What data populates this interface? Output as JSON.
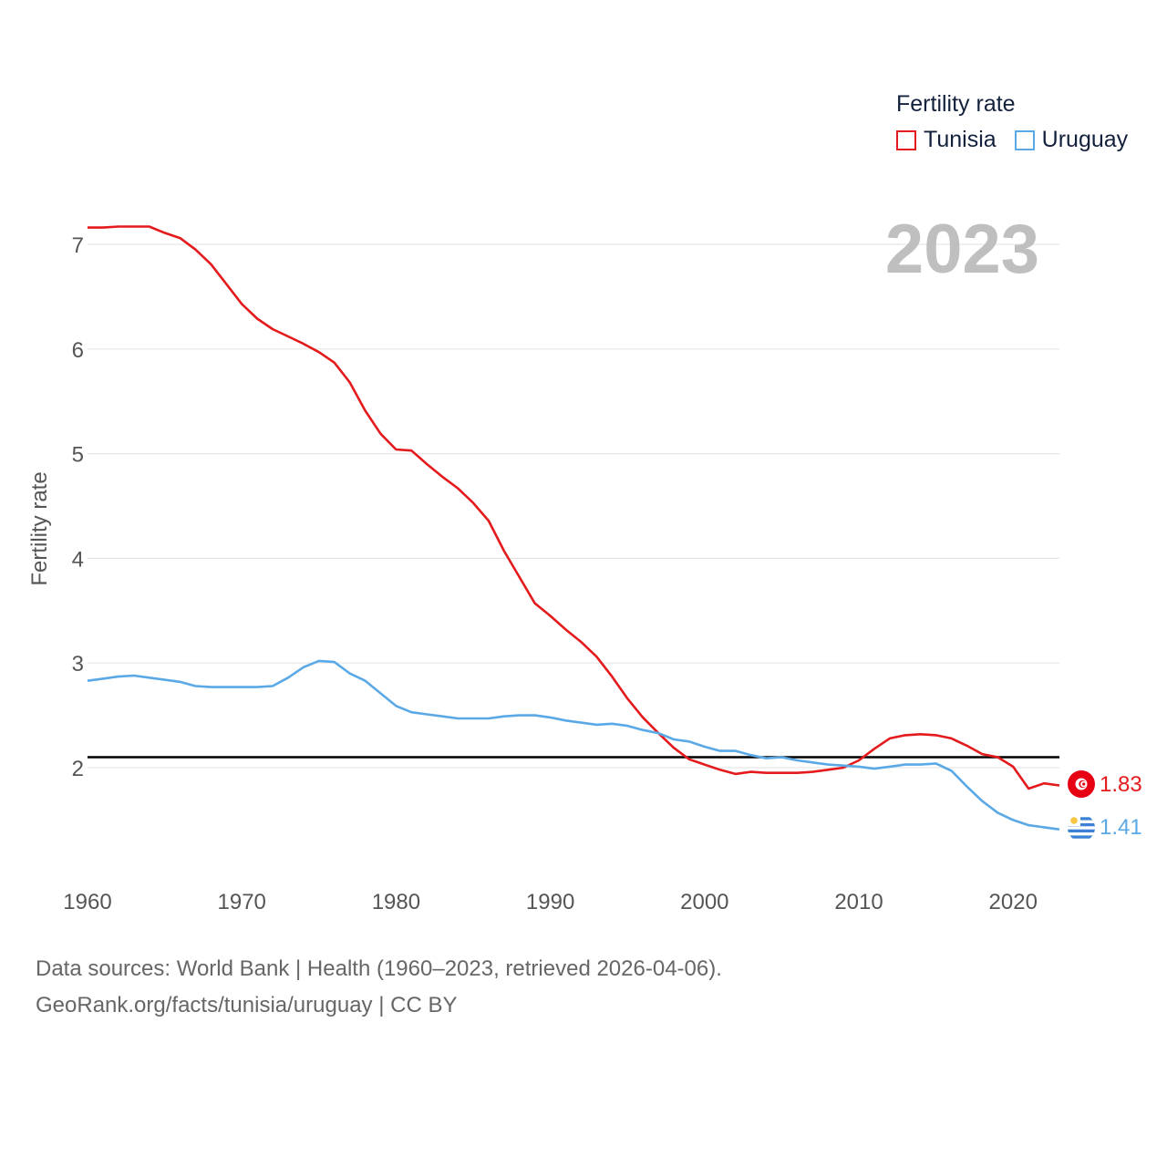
{
  "legend": {
    "title": "Fertility rate",
    "items": [
      {
        "label": "Tunisia",
        "color": "#e41a1c"
      },
      {
        "label": "Uruguay",
        "color": "#5aa9e6"
      }
    ]
  },
  "year_label": "2023",
  "footer": {
    "line1": "Data sources: World Bank | Health (1960–2023, retrieved 2026-04-06).",
    "line2": "GeoRank.org/facts/tunisia/uruguay | CC BY"
  },
  "end_labels": {
    "tunisia": "1.83",
    "uruguay": "1.41"
  },
  "chart_data": {
    "type": "line",
    "title": "",
    "xlabel": "",
    "ylabel": "Fertility rate",
    "xlim": [
      1960,
      2023
    ],
    "ylim": [
      1.0,
      7.4
    ],
    "x_ticks": [
      1960,
      1970,
      1980,
      1990,
      2000,
      2010,
      2020
    ],
    "y_ticks": [
      2,
      3,
      4,
      5,
      6,
      7
    ],
    "reference_line": {
      "value": 2.1,
      "color": "#000000"
    },
    "x": [
      1960,
      1961,
      1962,
      1963,
      1964,
      1965,
      1966,
      1967,
      1968,
      1969,
      1970,
      1971,
      1972,
      1973,
      1974,
      1975,
      1976,
      1977,
      1978,
      1979,
      1980,
      1981,
      1982,
      1983,
      1984,
      1985,
      1986,
      1987,
      1988,
      1989,
      1990,
      1991,
      1992,
      1993,
      1994,
      1995,
      1996,
      1997,
      1998,
      1999,
      2000,
      2001,
      2002,
      2003,
      2004,
      2005,
      2006,
      2007,
      2008,
      2009,
      2010,
      2011,
      2012,
      2013,
      2014,
      2015,
      2016,
      2017,
      2018,
      2019,
      2020,
      2021,
      2022,
      2023
    ],
    "series": [
      {
        "name": "Tunisia",
        "color": "#e41a1c",
        "values": [
          7.16,
          7.16,
          7.17,
          7.17,
          7.17,
          7.11,
          7.06,
          6.95,
          6.81,
          6.62,
          6.43,
          6.29,
          6.19,
          6.12,
          6.05,
          5.97,
          5.87,
          5.68,
          5.41,
          5.19,
          5.04,
          5.03,
          4.9,
          4.78,
          4.67,
          4.53,
          4.36,
          4.07,
          3.82,
          3.57,
          3.45,
          3.32,
          3.2,
          3.06,
          2.87,
          2.66,
          2.48,
          2.33,
          2.19,
          2.08,
          2.03,
          1.98,
          1.94,
          1.96,
          1.95,
          1.95,
          1.95,
          1.96,
          1.98,
          2.0,
          2.07,
          2.18,
          2.28,
          2.31,
          2.32,
          2.31,
          2.28,
          2.21,
          2.13,
          2.1,
          2.01,
          1.8,
          1.85,
          1.83
        ]
      },
      {
        "name": "Uruguay",
        "color": "#5aa9e6",
        "values": [
          2.83,
          2.85,
          2.87,
          2.88,
          2.86,
          2.84,
          2.82,
          2.78,
          2.77,
          2.77,
          2.77,
          2.77,
          2.78,
          2.86,
          2.96,
          3.02,
          3.01,
          2.9,
          2.83,
          2.71,
          2.59,
          2.53,
          2.51,
          2.49,
          2.47,
          2.47,
          2.47,
          2.49,
          2.5,
          2.5,
          2.48,
          2.45,
          2.43,
          2.41,
          2.42,
          2.4,
          2.36,
          2.33,
          2.27,
          2.25,
          2.2,
          2.16,
          2.16,
          2.12,
          2.09,
          2.1,
          2.07,
          2.05,
          2.03,
          2.02,
          2.01,
          1.99,
          2.01,
          2.03,
          2.03,
          2.04,
          1.97,
          1.82,
          1.68,
          1.57,
          1.5,
          1.45,
          1.43,
          1.41
        ]
      }
    ]
  }
}
